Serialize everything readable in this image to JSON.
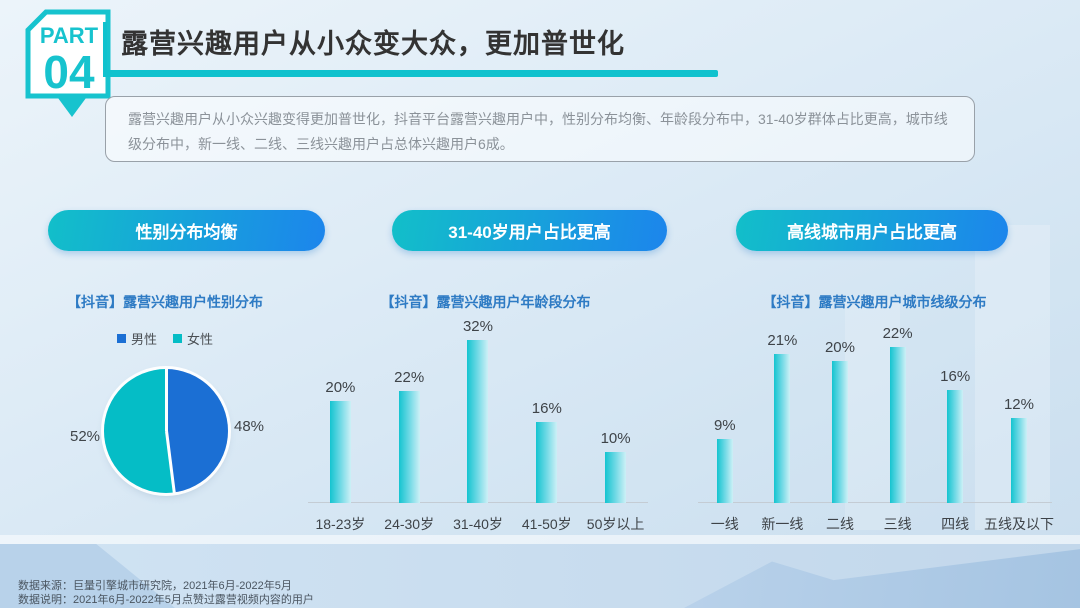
{
  "slide": {
    "part_label": "PART",
    "part_number": "04",
    "title": "露营兴趣用户从小众变大众，更加普世化",
    "description": "露营兴趣用户从小众兴趣变得更加普世化，抖音平台露营兴趣用户中，性别分布均衡、年龄段分布中，31-40岁群体占比更高，城市线级分布中，新一线、二线、三线兴趣用户占总体兴趣用户6成。"
  },
  "pills": [
    {
      "label": "性别分布均衡"
    },
    {
      "label": "31-40岁用户占比更高"
    },
    {
      "label": "高线城市用户占比更高"
    }
  ],
  "colors": {
    "accent_teal": "#10C2CE",
    "accent_blue": "#1C85EC",
    "pie_male_blue": "#1B6FD4",
    "pie_female_teal": "#05BDC6",
    "bar_teal": "#14C4D0",
    "bar_teal_light": "#CDF0F6",
    "chart_title_blue": "#2E7BC4"
  },
  "chart_data": [
    {
      "type": "pie",
      "title": "【抖音】露营兴趣用户性别分布",
      "labels": [
        "男性",
        "女性"
      ],
      "values": [
        48,
        52
      ],
      "unit": "%",
      "colors": [
        "#1B6FD4",
        "#05BDC6"
      ],
      "annotations": [
        "48%",
        "52%"
      ],
      "legend_position": "top"
    },
    {
      "type": "bar",
      "title": "【抖音】露营兴趣用户年龄段分布",
      "categories": [
        "18-23岁",
        "24-30岁",
        "31-40岁",
        "41-50岁",
        "50岁以上"
      ],
      "values": [
        20,
        22,
        32,
        16,
        10
      ],
      "unit": "%",
      "ylim": [
        0,
        32
      ],
      "grid": false
    },
    {
      "type": "bar",
      "title": "【抖音】露营兴趣用户城市线级分布",
      "categories": [
        "一线",
        "新一线",
        "二线",
        "三线",
        "四线",
        "五线及以下"
      ],
      "values": [
        9,
        21,
        20,
        22,
        16,
        12
      ],
      "unit": "%",
      "ylim": [
        0,
        22
      ],
      "grid": false
    }
  ],
  "footer": {
    "source": "数据来源：巨量引擎城市研究院，2021年6月-2022年5月",
    "note": "数据说明：2021年6月-2022年5月点赞过露营视频内容的用户"
  }
}
